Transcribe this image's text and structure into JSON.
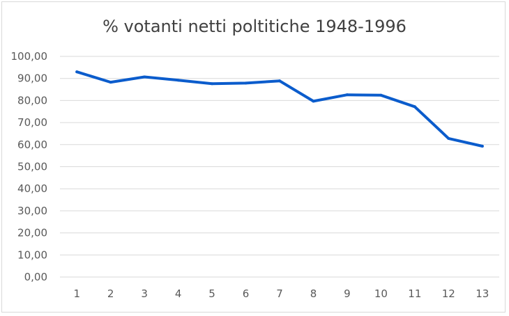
{
  "chart_data": {
    "type": "line",
    "title": "% votanti netti poltitiche 1948-1996",
    "categories": [
      "1",
      "2",
      "3",
      "4",
      "5",
      "6",
      "7",
      "8",
      "9",
      "10",
      "11",
      "12",
      "13"
    ],
    "series": [
      {
        "values": [
          93.0,
          88.3,
          90.7,
          89.2,
          87.6,
          87.9,
          88.9,
          79.7,
          82.6,
          82.4,
          77.2,
          62.8,
          59.3
        ]
      }
    ],
    "y_ticks": [
      "0,00",
      "10,00",
      "20,00",
      "30,00",
      "40,00",
      "50,00",
      "60,00",
      "70,00",
      "80,00",
      "90,00",
      "100,00"
    ],
    "ylim": [
      0,
      100
    ],
    "grid": "horizontal",
    "legend": "none",
    "colors": {
      "line": "#0b5ccc",
      "grid": "#d9d9d9",
      "text": "#595959",
      "title": "#404040"
    }
  }
}
